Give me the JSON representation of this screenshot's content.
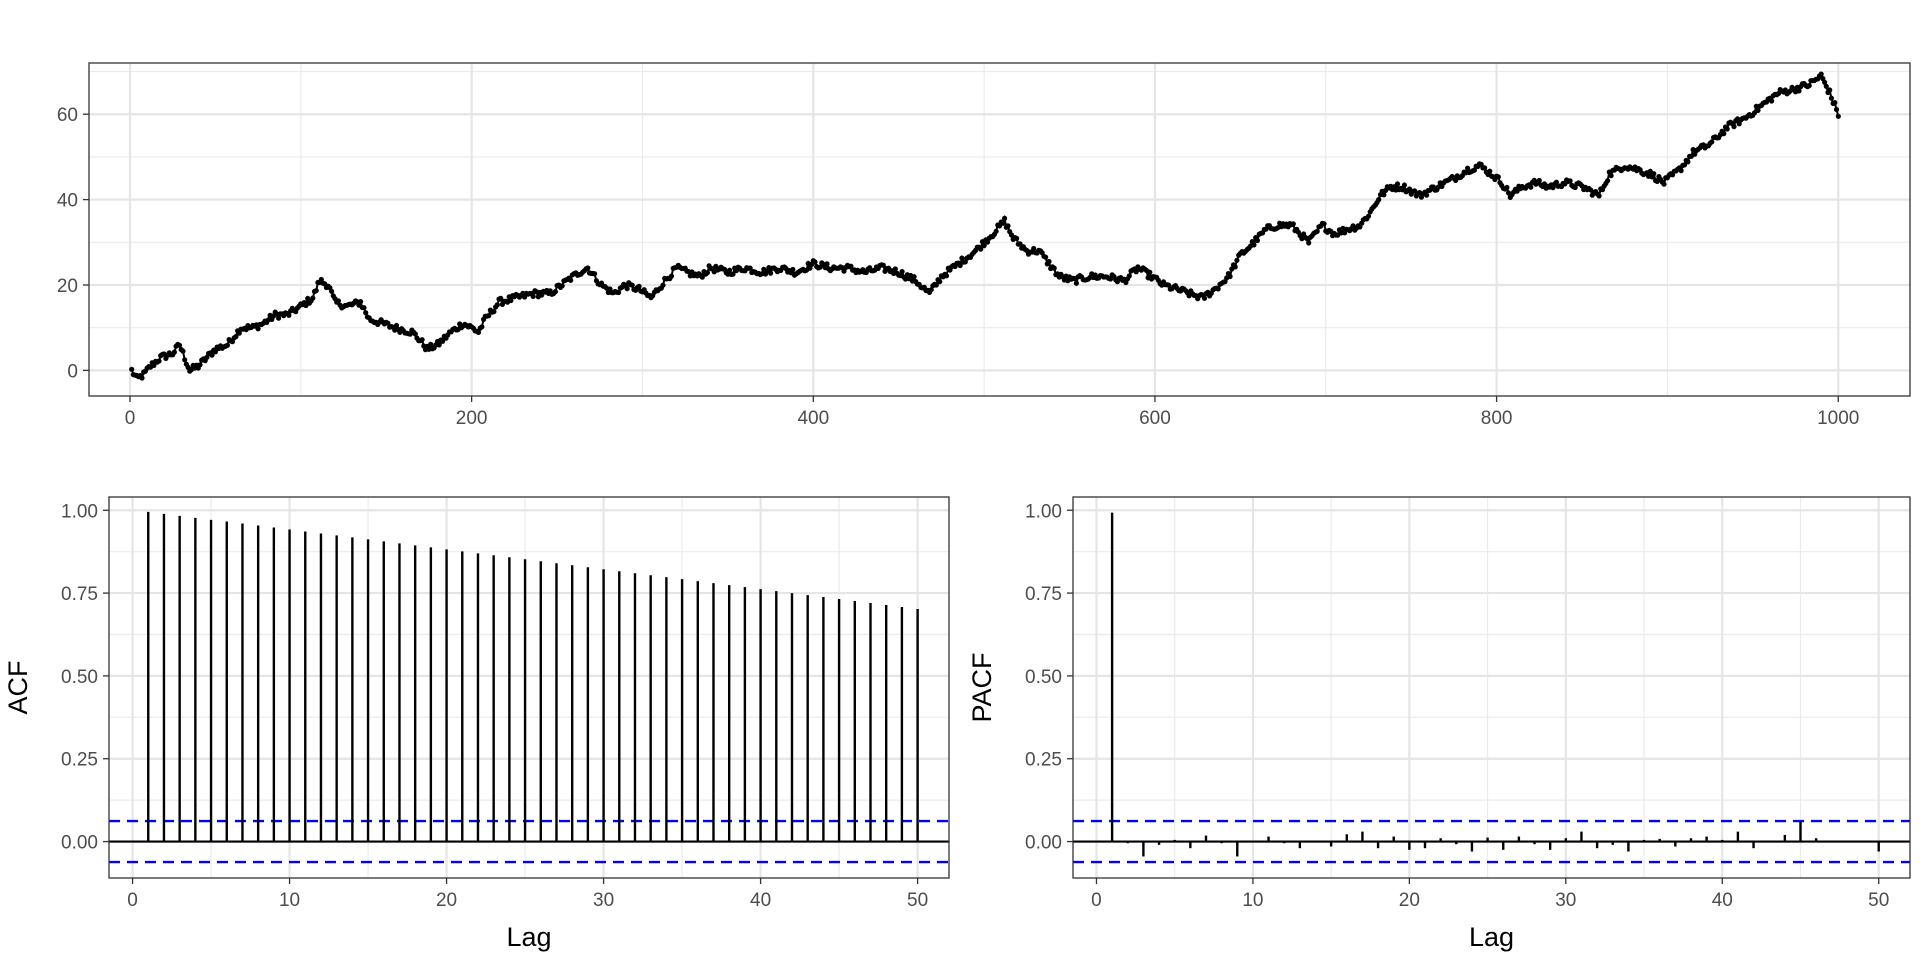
{
  "chart_data": [
    {
      "id": "series",
      "type": "line",
      "title": "",
      "xlabel": "",
      "ylabel": "",
      "xlim": [
        -24,
        1042
      ],
      "ylim": [
        -6,
        72
      ],
      "x_ticks": [
        0,
        200,
        400,
        600,
        800,
        1000
      ],
      "y_ticks": [
        0,
        20,
        40,
        60
      ],
      "x_tick_labels": [
        "0",
        "200",
        "400",
        "600",
        "800",
        "1000"
      ],
      "y_tick_labels": [
        "0",
        "20",
        "40",
        "60"
      ],
      "grid": true,
      "markers": "points",
      "line_color": "#000000",
      "n": 1000,
      "anchors": [
        [
          1,
          0
        ],
        [
          4,
          -2
        ],
        [
          8,
          -1
        ],
        [
          12,
          1
        ],
        [
          18,
          3
        ],
        [
          25,
          4
        ],
        [
          29,
          6
        ],
        [
          32,
          3
        ],
        [
          35,
          0
        ],
        [
          40,
          1
        ],
        [
          45,
          3
        ],
        [
          50,
          5
        ],
        [
          57,
          6
        ],
        [
          65,
          10
        ],
        [
          72,
          10
        ],
        [
          78,
          11
        ],
        [
          85,
          13
        ],
        [
          92,
          13
        ],
        [
          100,
          15
        ],
        [
          107,
          17
        ],
        [
          111,
          21
        ],
        [
          116,
          20
        ],
        [
          120,
          16
        ],
        [
          127,
          15
        ],
        [
          135,
          16
        ],
        [
          140,
          12
        ],
        [
          148,
          11
        ],
        [
          155,
          10
        ],
        [
          165,
          9
        ],
        [
          170,
          7
        ],
        [
          174,
          5
        ],
        [
          180,
          6
        ],
        [
          188,
          9
        ],
        [
          195,
          11
        ],
        [
          200,
          10
        ],
        [
          204,
          9
        ],
        [
          208,
          12
        ],
        [
          216,
          16
        ],
        [
          226,
          17
        ],
        [
          236,
          18
        ],
        [
          246,
          18
        ],
        [
          256,
          21
        ],
        [
          263,
          23
        ],
        [
          268,
          24
        ],
        [
          276,
          20
        ],
        [
          283,
          18
        ],
        [
          290,
          20
        ],
        [
          298,
          19
        ],
        [
          305,
          17
        ],
        [
          313,
          21
        ],
        [
          320,
          24
        ],
        [
          326,
          23
        ],
        [
          333,
          22
        ],
        [
          340,
          24
        ],
        [
          350,
          23
        ],
        [
          360,
          24
        ],
        [
          370,
          23
        ],
        [
          380,
          24
        ],
        [
          390,
          23
        ],
        [
          400,
          25
        ],
        [
          410,
          24
        ],
        [
          420,
          24
        ],
        [
          430,
          23
        ],
        [
          440,
          24
        ],
        [
          450,
          23
        ],
        [
          460,
          21
        ],
        [
          468,
          18
        ],
        [
          475,
          22
        ],
        [
          485,
          25
        ],
        [
          495,
          28
        ],
        [
          505,
          32
        ],
        [
          512,
          35
        ],
        [
          517,
          31
        ],
        [
          525,
          28
        ],
        [
          532,
          28
        ],
        [
          538,
          25
        ],
        [
          544,
          22
        ],
        [
          552,
          21
        ],
        [
          562,
          22
        ],
        [
          572,
          22
        ],
        [
          582,
          21
        ],
        [
          590,
          24
        ],
        [
          598,
          22
        ],
        [
          605,
          20
        ],
        [
          613,
          19
        ],
        [
          620,
          18
        ],
        [
          628,
          17
        ],
        [
          635,
          19
        ],
        [
          643,
          22
        ],
        [
          650,
          27
        ],
        [
          658,
          30
        ],
        [
          665,
          33
        ],
        [
          672,
          34
        ],
        [
          680,
          34
        ],
        [
          690,
          30
        ],
        [
          698,
          34
        ],
        [
          705,
          32
        ],
        [
          712,
          33
        ],
        [
          720,
          34
        ],
        [
          726,
          37
        ],
        [
          732,
          41
        ],
        [
          738,
          43
        ],
        [
          745,
          43
        ],
        [
          755,
          41
        ],
        [
          765,
          43
        ],
        [
          775,
          45
        ],
        [
          783,
          47
        ],
        [
          790,
          48
        ],
        [
          797,
          46
        ],
        [
          803,
          44
        ],
        [
          808,
          41
        ],
        [
          815,
          43
        ],
        [
          823,
          44
        ],
        [
          830,
          43
        ],
        [
          840,
          44
        ],
        [
          850,
          43
        ],
        [
          860,
          41
        ],
        [
          866,
          46
        ],
        [
          875,
          48
        ],
        [
          883,
          47
        ],
        [
          890,
          46
        ],
        [
          898,
          44
        ],
        [
          907,
          47
        ],
        [
          915,
          51
        ],
        [
          925,
          53
        ],
        [
          935,
          57
        ],
        [
          945,
          59
        ],
        [
          955,
          62
        ],
        [
          965,
          65
        ],
        [
          975,
          66
        ],
        [
          983,
          67
        ],
        [
          990,
          69
        ],
        [
          995,
          65
        ],
        [
          1000,
          60
        ]
      ]
    },
    {
      "id": "acf",
      "type": "bar",
      "title": "",
      "xlabel": "Lag",
      "ylabel": "ACF",
      "xlim": [
        -1.5,
        52.0
      ],
      "ylim": [
        -0.11,
        1.04
      ],
      "x_ticks": [
        0,
        10,
        20,
        30,
        40,
        50
      ],
      "y_ticks": [
        0,
        0.25,
        0.5,
        0.75,
        1.0
      ],
      "x_tick_labels": [
        "0",
        "10",
        "20",
        "30",
        "40",
        "50"
      ],
      "y_tick_labels": [
        "0.00",
        "0.25",
        "0.50",
        "0.75",
        "1.00"
      ],
      "grid": true,
      "conf_limit": 0.062,
      "conf_color": "#0000ff",
      "lags": [
        1,
        2,
        3,
        4,
        5,
        6,
        7,
        8,
        9,
        10,
        11,
        12,
        13,
        14,
        15,
        16,
        17,
        18,
        19,
        20,
        21,
        22,
        23,
        24,
        25,
        26,
        27,
        28,
        29,
        30,
        31,
        32,
        33,
        34,
        35,
        36,
        37,
        38,
        39,
        40,
        41,
        42,
        43,
        44,
        45,
        46,
        47,
        48,
        49,
        50
      ],
      "values": [
        0.995,
        0.989,
        0.983,
        0.977,
        0.971,
        0.966,
        0.96,
        0.954,
        0.948,
        0.942,
        0.936,
        0.93,
        0.924,
        0.918,
        0.912,
        0.906,
        0.9,
        0.894,
        0.888,
        0.882,
        0.876,
        0.87,
        0.864,
        0.858,
        0.852,
        0.846,
        0.84,
        0.834,
        0.828,
        0.822,
        0.816,
        0.81,
        0.804,
        0.798,
        0.792,
        0.786,
        0.78,
        0.774,
        0.768,
        0.762,
        0.756,
        0.75,
        0.744,
        0.738,
        0.732,
        0.726,
        0.72,
        0.714,
        0.708,
        0.702
      ]
    },
    {
      "id": "pacf",
      "type": "bar",
      "title": "",
      "xlabel": "Lag",
      "ylabel": "PACF",
      "xlim": [
        -1.5,
        52.0
      ],
      "ylim": [
        -0.11,
        1.04
      ],
      "x_ticks": [
        0,
        10,
        20,
        30,
        40,
        50
      ],
      "y_ticks": [
        0,
        0.25,
        0.5,
        0.75,
        1.0
      ],
      "x_tick_labels": [
        "0",
        "10",
        "20",
        "30",
        "40",
        "50"
      ],
      "y_tick_labels": [
        "0.00",
        "0.25",
        "0.50",
        "0.75",
        "1.00"
      ],
      "grid": true,
      "conf_limit": 0.062,
      "conf_color": "#0000ff",
      "lags": [
        1,
        2,
        3,
        4,
        5,
        6,
        7,
        8,
        9,
        10,
        11,
        12,
        13,
        14,
        15,
        16,
        17,
        18,
        19,
        20,
        21,
        22,
        23,
        24,
        25,
        26,
        27,
        28,
        29,
        30,
        31,
        32,
        33,
        34,
        35,
        36,
        37,
        38,
        39,
        40,
        41,
        42,
        43,
        44,
        45,
        46,
        47,
        48,
        49,
        50
      ],
      "values": [
        0.993,
        -0.005,
        -0.045,
        -0.01,
        0.005,
        -0.02,
        0.018,
        -0.005,
        -0.045,
        0.0,
        0.015,
        -0.005,
        -0.02,
        0.002,
        -0.015,
        0.022,
        0.03,
        -0.02,
        0.015,
        -0.025,
        -0.02,
        0.01,
        -0.008,
        -0.03,
        0.012,
        -0.025,
        0.015,
        -0.008,
        -0.025,
        0.01,
        0.03,
        -0.02,
        -0.01,
        -0.03,
        0.005,
        0.008,
        -0.015,
        0.01,
        0.015,
        0.005,
        0.03,
        -0.02,
        0.0,
        0.02,
        0.06,
        0.01,
        0.0,
        0.0,
        0.0,
        -0.03
      ]
    }
  ]
}
